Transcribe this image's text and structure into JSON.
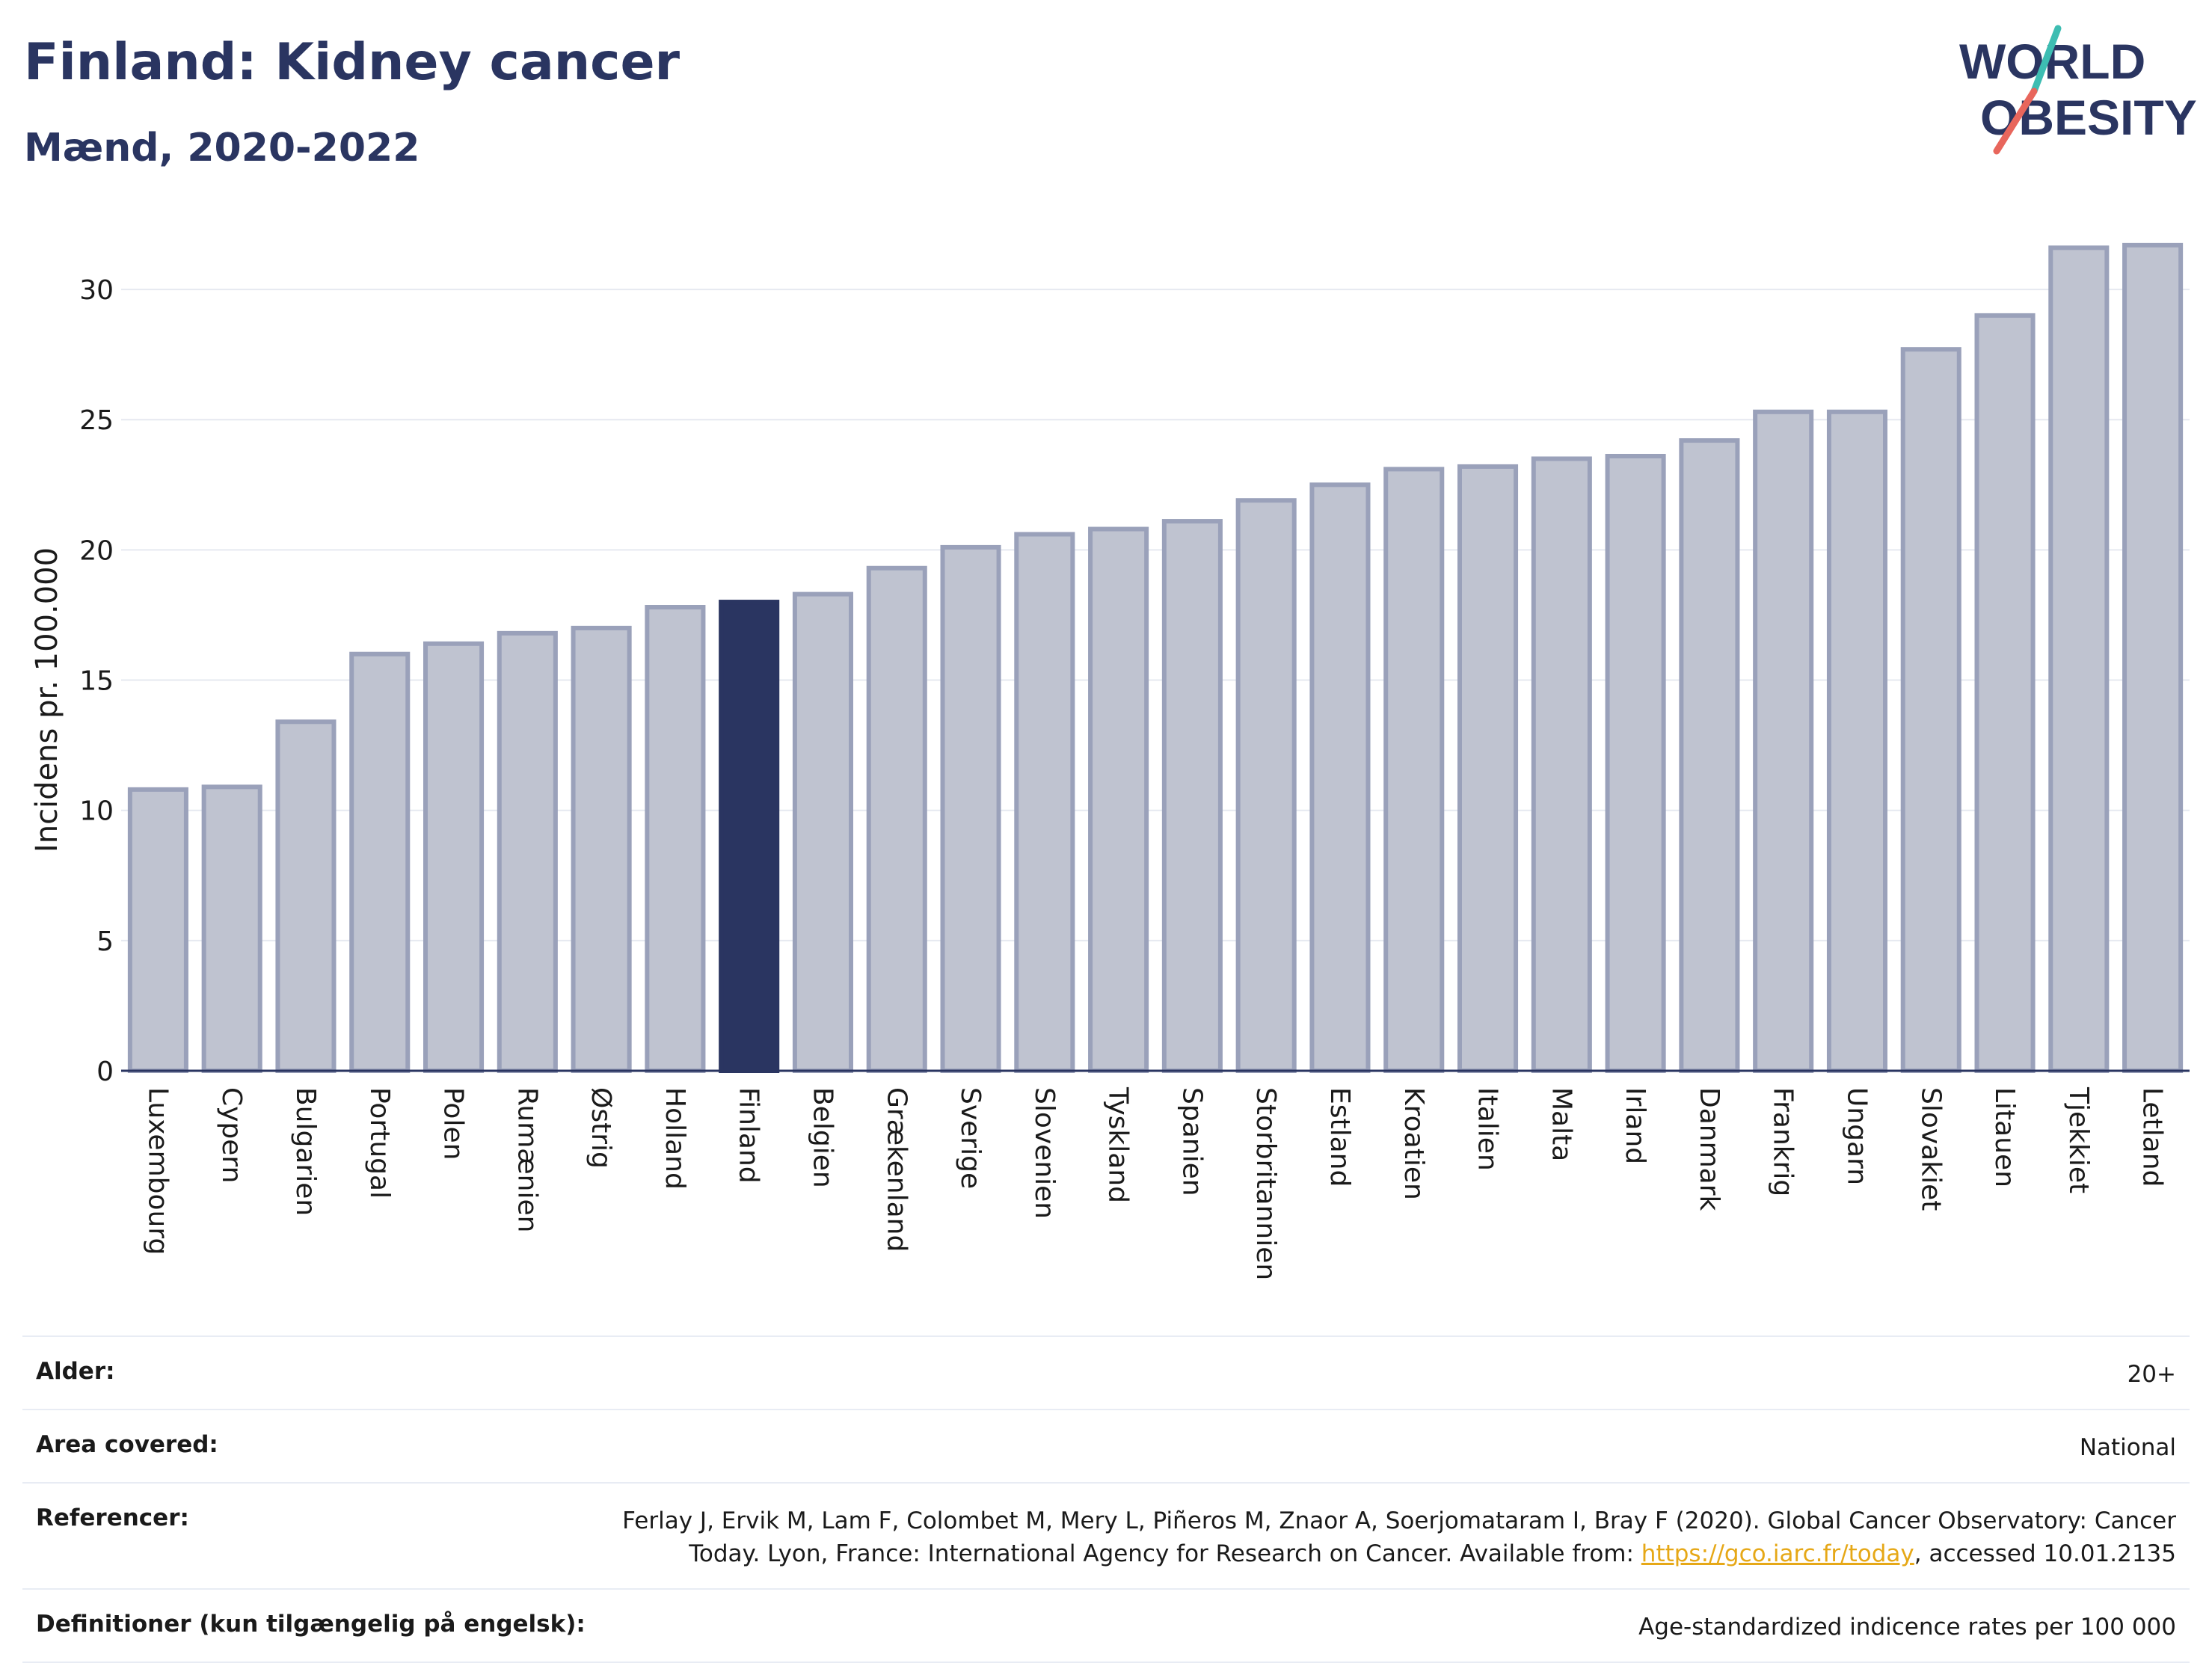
{
  "header": {
    "title": "Finland: Kidney cancer",
    "subtitle": "Mænd, 2020-2022"
  },
  "logo": {
    "line1": "WORLD",
    "line2": "OBESITY",
    "accent_teal": "#3dbdb2",
    "accent_red": "#e8665c"
  },
  "colors": {
    "bar_default": "#bfc3d0",
    "bar_border": "#9aa1ba",
    "bar_highlight": "#2a3561",
    "text": "#2a3561"
  },
  "chart_data": {
    "type": "bar",
    "title": "",
    "xlabel": "",
    "ylabel": "Incidens pr. 100.000",
    "ylim": [
      0,
      32.5
    ],
    "yticks": [
      0,
      5,
      10,
      15,
      20,
      25,
      30
    ],
    "grid": true,
    "highlight": "Finland",
    "categories": [
      "Luxembourg",
      "Cypern",
      "Bulgarien",
      "Portugal",
      "Polen",
      "Rumænien",
      "Østrig",
      "Holland",
      "Finland",
      "Belgien",
      "Grækenland",
      "Sverige",
      "Slovenien",
      "Tyskland",
      "Spanien",
      "Storbritannien",
      "Estland",
      "Kroatien",
      "Italien",
      "Malta",
      "Irland",
      "Danmark",
      "Frankrig",
      "Ungarn",
      "Slovakiet",
      "Litauen",
      "Tjekkiet",
      "Letland"
    ],
    "values": [
      10.8,
      10.9,
      13.4,
      16.0,
      16.4,
      16.8,
      17.0,
      17.8,
      18.0,
      18.3,
      19.3,
      20.1,
      20.6,
      20.8,
      21.1,
      21.9,
      22.5,
      23.1,
      23.2,
      23.5,
      23.6,
      24.2,
      25.3,
      25.3,
      27.7,
      29.0,
      31.6,
      31.7
    ]
  },
  "meta": {
    "rows": [
      {
        "label": "Alder:",
        "value": "20+"
      },
      {
        "label": "Area covered:",
        "value": "National"
      },
      {
        "label": "Referencer:",
        "value_pre": "Ferlay J, Ervik M, Lam F, Colombet M, Mery L, Piñeros M, Znaor A, Soerjomataram I, Bray F (2020). Global Cancer Observatory: Cancer Today. Lyon, France: International Agency for Research on Cancer. Available from: ",
        "link": "https://gco.iarc.fr/today",
        "value_post": ", accessed 10.01.2135"
      },
      {
        "label": "Definitioner (kun tilgængelig på engelsk):",
        "value": "Age-standardized indicence rates per 100 000"
      }
    ]
  }
}
